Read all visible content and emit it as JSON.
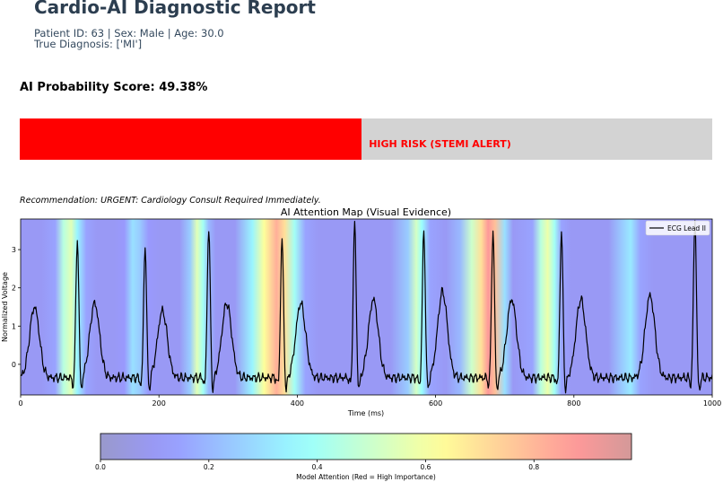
{
  "header": {
    "title": "Cardio-AI Diagnostic Report",
    "patient_line": "Patient ID: 63 | Sex: Male | Age: 30.0",
    "diagnosis_line": "True Diagnosis: ['MI']"
  },
  "score": {
    "label": "AI Probability Score: 49.38%",
    "probability": 0.4938,
    "risk_label": "HIGH RISK (STEMI ALERT)",
    "fill_color": "#ff0000",
    "track_color": "#d3d3d3"
  },
  "recommendation": "Recommendation: URGENT: Cardiology Consult Required Immediately.",
  "chart_data": [
    {
      "type": "line",
      "title": "AI Attention Map (Visual Evidence)",
      "xlabel": "Time (ms)",
      "ylabel": "Normalized Voltage",
      "xlim": [
        0,
        1000
      ],
      "ylim": [
        -0.8,
        3.8
      ],
      "xticks": [
        "0",
        "200",
        "400",
        "600",
        "800",
        "1000"
      ],
      "yticks": [
        "0",
        "1",
        "2",
        "3"
      ],
      "legend": "top-right",
      "grid": false,
      "series": [
        {
          "name": "ECG Lead II",
          "color": "#000000",
          "r_peaks": [
            {
              "x": 82,
              "y": 3.3
            },
            {
              "x": 180,
              "y": 3.1
            },
            {
              "x": 272,
              "y": 3.6
            },
            {
              "x": 378,
              "y": 3.3
            },
            {
              "x": 483,
              "y": 3.7
            },
            {
              "x": 583,
              "y": 3.5
            },
            {
              "x": 683,
              "y": 3.5
            },
            {
              "x": 782,
              "y": 3.5
            },
            {
              "x": 975,
              "y": 3.8
            }
          ],
          "t_waves": [
            {
              "x": 20,
              "y": 1.5
            },
            {
              "x": 107,
              "y": 1.6
            },
            {
              "x": 205,
              "y": 1.4
            },
            {
              "x": 298,
              "y": 1.6
            },
            {
              "x": 405,
              "y": 1.6
            },
            {
              "x": 510,
              "y": 1.7
            },
            {
              "x": 610,
              "y": 1.9
            },
            {
              "x": 710,
              "y": 1.7
            },
            {
              "x": 810,
              "y": 1.7
            },
            {
              "x": 910,
              "y": 1.8
            }
          ],
          "baseline": -0.35
        }
      ],
      "attention": [
        {
          "x": 0,
          "v": 0.1
        },
        {
          "x": 30,
          "v": 0.1
        },
        {
          "x": 50,
          "v": 0.15
        },
        {
          "x": 62,
          "v": 0.45
        },
        {
          "x": 73,
          "v": 0.55
        },
        {
          "x": 82,
          "v": 0.35
        },
        {
          "x": 95,
          "v": 0.15
        },
        {
          "x": 110,
          "v": 0.1
        },
        {
          "x": 135,
          "v": 0.1
        },
        {
          "x": 150,
          "v": 0.12
        },
        {
          "x": 162,
          "v": 0.3
        },
        {
          "x": 172,
          "v": 0.25
        },
        {
          "x": 185,
          "v": 0.12
        },
        {
          "x": 200,
          "v": 0.1
        },
        {
          "x": 230,
          "v": 0.1
        },
        {
          "x": 245,
          "v": 0.25
        },
        {
          "x": 255,
          "v": 0.55
        },
        {
          "x": 264,
          "v": 0.4
        },
        {
          "x": 272,
          "v": 0.2
        },
        {
          "x": 282,
          "v": 0.1
        },
        {
          "x": 310,
          "v": 0.1
        },
        {
          "x": 335,
          "v": 0.35
        },
        {
          "x": 352,
          "v": 0.62
        },
        {
          "x": 370,
          "v": 0.82
        },
        {
          "x": 382,
          "v": 0.7
        },
        {
          "x": 396,
          "v": 0.4
        },
        {
          "x": 412,
          "v": 0.15
        },
        {
          "x": 430,
          "v": 0.1
        },
        {
          "x": 470,
          "v": 0.1
        },
        {
          "x": 500,
          "v": 0.1
        },
        {
          "x": 535,
          "v": 0.1
        },
        {
          "x": 560,
          "v": 0.25
        },
        {
          "x": 572,
          "v": 0.52
        },
        {
          "x": 580,
          "v": 0.38
        },
        {
          "x": 592,
          "v": 0.15
        },
        {
          "x": 615,
          "v": 0.1
        },
        {
          "x": 635,
          "v": 0.2
        },
        {
          "x": 652,
          "v": 0.5
        },
        {
          "x": 666,
          "v": 0.7
        },
        {
          "x": 676,
          "v": 0.88
        },
        {
          "x": 686,
          "v": 0.78
        },
        {
          "x": 700,
          "v": 0.3
        },
        {
          "x": 712,
          "v": 0.1
        },
        {
          "x": 740,
          "v": 0.15
        },
        {
          "x": 752,
          "v": 0.45
        },
        {
          "x": 762,
          "v": 0.58
        },
        {
          "x": 772,
          "v": 0.4
        },
        {
          "x": 782,
          "v": 0.15
        },
        {
          "x": 795,
          "v": 0.1
        },
        {
          "x": 850,
          "v": 0.1
        },
        {
          "x": 870,
          "v": 0.25
        },
        {
          "x": 882,
          "v": 0.32
        },
        {
          "x": 896,
          "v": 0.15
        },
        {
          "x": 915,
          "v": 0.1
        },
        {
          "x": 1000,
          "v": 0.1
        }
      ]
    },
    {
      "type": "heatmap",
      "xlabel": "Model Attention (Red = High Importance)",
      "xlim": [
        0,
        0.98
      ],
      "xticks": [
        "0.0",
        "0.2",
        "0.4",
        "0.6",
        "0.8"
      ],
      "colormap": "jet",
      "alpha": 0.4
    }
  ]
}
